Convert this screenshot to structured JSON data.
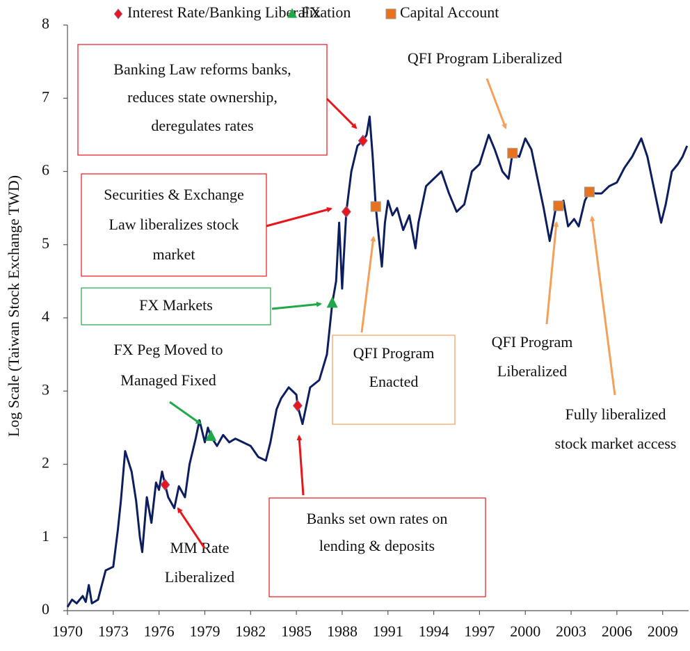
{
  "chart_data": {
    "type": "line",
    "ylabel": "Log Scale (Taiwan Stock Exchange TWD)",
    "xlim": [
      1970,
      2010.7
    ],
    "xticks": [
      1970,
      1973,
      1976,
      1979,
      1982,
      1985,
      1988,
      1991,
      1994,
      1997,
      2000,
      2003,
      2006,
      2009
    ],
    "ylim": [
      0,
      8
    ],
    "yticks": [
      0,
      1,
      2,
      3,
      4,
      5,
      6,
      7,
      8
    ],
    "line": {
      "color": "#0d1e5e",
      "x": [
        1970,
        1970.3,
        1970.6,
        1971,
        1971.2,
        1971.4,
        1971.6,
        1972,
        1972.5,
        1973,
        1973.3,
        1973.5,
        1973.78,
        1974.2,
        1974.5,
        1974.75,
        1974.9,
        1975.2,
        1975.5,
        1975.8,
        1976,
        1976.2,
        1976.4,
        1976.6,
        1977,
        1977.3,
        1977.7,
        1978,
        1978.4,
        1978.65,
        1979,
        1979.2,
        1979.4,
        1979.8,
        1980.2,
        1980.6,
        1981,
        1981.5,
        1982,
        1982.5,
        1983,
        1983.3,
        1983.7,
        1984,
        1984.5,
        1985,
        1985.08,
        1985.4,
        1985.9,
        1986.5,
        1987,
        1987.2,
        1987.35,
        1987.6,
        1987.8,
        1988,
        1988.1,
        1988.27,
        1988.6,
        1989,
        1989.36,
        1989.6,
        1989.8,
        1990,
        1990.2,
        1990.4,
        1990.6,
        1990.8,
        1991,
        1991.3,
        1991.6,
        1992,
        1992.4,
        1992.8,
        1993,
        1993.5,
        1994,
        1994.5,
        1995,
        1995.5,
        1996,
        1996.5,
        1997,
        1997.6,
        1998,
        1998.5,
        1998.9,
        1999.16,
        1999.6,
        2000,
        2000.4,
        2000.8,
        2001.2,
        2001.6,
        2002,
        2002.17,
        2002.5,
        2002.8,
        2003.2,
        2003.5,
        2003.9,
        2004.2,
        2004.6,
        2005,
        2005.5,
        2006,
        2006.5,
        2007,
        2007.6,
        2008,
        2008.5,
        2008.9,
        2009.2,
        2009.6,
        2010,
        2010.3,
        2010.6
      ],
      "values": [
        0.05,
        0.15,
        0.1,
        0.2,
        0.12,
        0.35,
        0.1,
        0.15,
        0.55,
        0.6,
        1.1,
        1.5,
        2.18,
        1.9,
        1.5,
        1.0,
        0.8,
        1.55,
        1.2,
        1.75,
        1.65,
        1.9,
        1.72,
        1.55,
        1.4,
        1.7,
        1.55,
        2.0,
        2.35,
        2.6,
        2.3,
        2.5,
        2.38,
        2.25,
        2.4,
        2.3,
        2.35,
        2.3,
        2.25,
        2.1,
        2.05,
        2.3,
        2.75,
        2.9,
        3.05,
        2.95,
        2.8,
        2.55,
        3.05,
        3.15,
        3.5,
        3.9,
        4.2,
        4.5,
        5.3,
        4.4,
        4.8,
        5.45,
        6.0,
        6.35,
        6.42,
        6.5,
        6.75,
        6.2,
        5.52,
        5.1,
        4.7,
        5.3,
        5.6,
        5.4,
        5.5,
        5.2,
        5.4,
        4.95,
        5.3,
        5.8,
        5.9,
        6.0,
        5.7,
        5.45,
        5.55,
        6.0,
        6.1,
        6.5,
        6.3,
        6.0,
        5.9,
        6.25,
        6.2,
        6.45,
        6.3,
        5.9,
        5.5,
        5.05,
        5.5,
        5.53,
        5.6,
        5.25,
        5.35,
        5.25,
        5.6,
        5.72,
        5.7,
        5.7,
        5.8,
        5.85,
        6.05,
        6.2,
        6.45,
        6.2,
        5.7,
        5.3,
        5.55,
        6.0,
        6.1,
        6.2,
        6.35
      ]
    },
    "series": [
      {
        "name": "Interest Rate/Banking Liberalization",
        "marker": "diamond",
        "color": "#e8151b",
        "x": [
          1976.4,
          1985.08,
          1988.27,
          1989.36
        ],
        "values": [
          1.72,
          2.8,
          5.45,
          6.42
        ]
      },
      {
        "name": "FX",
        "marker": "triangle",
        "color": "#21a84a",
        "x": [
          1979.4,
          1987.35
        ],
        "values": [
          2.38,
          4.2
        ]
      },
      {
        "name": "Capital Account",
        "marker": "square",
        "color": "#e8731f",
        "x": [
          1990.2,
          1999.16,
          2002.17,
          2004.2
        ],
        "values": [
          5.52,
          6.25,
          5.53,
          5.72
        ]
      }
    ],
    "annotations": [
      {
        "text": [
          "Banking Law reforms banks,",
          "reduces state ownership,",
          "deregulates rates"
        ],
        "color": "#e8151b",
        "box": true
      },
      {
        "text": [
          "Securities & Exchange",
          "Law liberalizes stock",
          "market"
        ],
        "color": "#e8151b",
        "box": true
      },
      {
        "text": [
          "FX Markets"
        ],
        "color": "#21a84a",
        "box": true
      },
      {
        "text": [
          "FX Peg Moved to",
          "Managed Fixed"
        ],
        "color": "#21a84a",
        "box": false
      },
      {
        "text": [
          "MM Rate",
          "Liberalized"
        ],
        "color": "#e8151b",
        "box": false
      },
      {
        "text": [
          "Banks set own rates on",
          "lending & deposits"
        ],
        "color": "#e8151b",
        "box": true
      },
      {
        "text": [
          "QFI Program",
          "Enacted"
        ],
        "color": "#f5a05a",
        "box": true
      },
      {
        "text": [
          "QFI Program Liberalized"
        ],
        "color": "#f5a05a",
        "box": false
      },
      {
        "text": [
          "QFI Program",
          "Liberalized"
        ],
        "color": "#f5a05a",
        "box": false
      },
      {
        "text": [
          "Fully liberalized",
          "stock market access"
        ],
        "color": "#f5a05a",
        "box": false
      }
    ]
  }
}
